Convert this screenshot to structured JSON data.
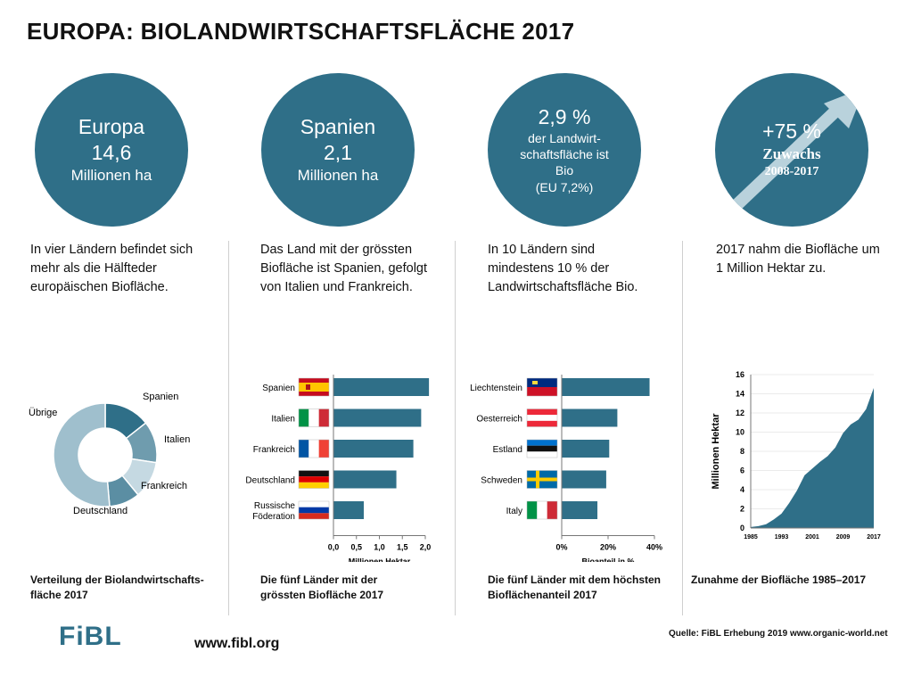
{
  "title": "EUROPA: BIOLANDWIRTSCHAFTSFLÄCHE 2017",
  "accent_color": "#2f6f88",
  "circles": [
    {
      "line1": "Europa",
      "line2": "14,6",
      "line3": "Millionen ha"
    },
    {
      "line1": "Spanien",
      "line2": "2,1",
      "line3": "Millionen ha"
    },
    {
      "line1": "2,9 %",
      "line2": "der Landwirt-",
      "line3": "schaftsfläche ist",
      "line4": "Bio",
      "line5": "(EU 7,2%)"
    },
    {
      "line1": "+75 %",
      "line2": "Zuwachs",
      "line3": "2008-2017"
    }
  ],
  "descriptions": [
    "In vier Ländern befindet sich mehr als die Hälfteder europäischen Biofläche.",
    "Das Land mit der grössten Biofläche ist Spanien, gefolgt von Italien und Frankreich.",
    "In 10 Ländern sind mindestens 10 % der Landwirtschaftsfläche Bio.",
    "2017 nahm die Biofläche um 1 Million Hektar zu."
  ],
  "captions": [
    {
      "line1": "Verteilung der Biolandwirtschafts-",
      "line2": "fläche 2017"
    },
    {
      "line1": "Die fünf Länder mit der",
      "line2": "grössten Biofläche 2017"
    },
    {
      "line1": "Die fünf Länder mit dem höchsten",
      "line2": "Bioflächenanteil 2017"
    },
    {
      "line1": "Zunahme der Biofläche 1985–2017",
      "line2": ""
    }
  ],
  "chart_data": [
    {
      "type": "pie",
      "style": "donut",
      "labels": [
        "Spanien",
        "Italien",
        "Frankreich",
        "Deutschland",
        "Übrige"
      ],
      "values": [
        2.1,
        1.9,
        1.7,
        1.4,
        7.5
      ],
      "colors": [
        "#2f6f88",
        "#6f9cae",
        "#c5d9e2",
        "#5b8ea3",
        "#9fbfcd"
      ]
    },
    {
      "type": "bar",
      "orientation": "horizontal",
      "categories": [
        "Spanien",
        "Italien",
        "Frankreich",
        "Deutschland",
        "Russische Föderation"
      ],
      "flags": [
        "spain-flag-icon",
        "italy-flag-icon",
        "france-flag-icon",
        "germany-flag-icon",
        "russia-flag-icon"
      ],
      "values": [
        2.08,
        1.91,
        1.74,
        1.37,
        0.66
      ],
      "xlabel": "Millionen Hektar",
      "ticks": [
        "0,0",
        "0,5",
        "1,0",
        "1,5",
        "2,0"
      ],
      "xlim": [
        0,
        2.0
      ],
      "color": "#2f6f88"
    },
    {
      "type": "bar",
      "orientation": "horizontal",
      "categories": [
        "Liechtenstein",
        "Oesterreich",
        "Estland",
        "Schweden",
        "Italy"
      ],
      "flags": [
        "liechtenstein-flag-icon",
        "austria-flag-icon",
        "estonia-flag-icon",
        "sweden-flag-icon",
        "italy-flag-icon"
      ],
      "values": [
        37.9,
        24.0,
        20.5,
        19.2,
        15.4
      ],
      "xlabel": "Bioanteil in %",
      "ticks": [
        "0%",
        "20%",
        "40%"
      ],
      "xlim": [
        0,
        40
      ],
      "color": "#2f6f88"
    },
    {
      "type": "area",
      "x": [
        1985,
        1987,
        1989,
        1991,
        1993,
        1995,
        1997,
        1999,
        2001,
        2003,
        2005,
        2007,
        2009,
        2011,
        2013,
        2015,
        2017
      ],
      "y": [
        0.1,
        0.2,
        0.4,
        0.9,
        1.5,
        2.6,
        3.9,
        5.5,
        6.2,
        6.9,
        7.5,
        8.4,
        9.9,
        10.8,
        11.3,
        12.4,
        14.6
      ],
      "ylabel": "Millionen Hektar",
      "xticks": [
        "1985",
        "1993",
        "2001",
        "2009",
        "2017"
      ],
      "yticks": [
        "0",
        "2",
        "4",
        "6",
        "8",
        "10",
        "12",
        "14",
        "16"
      ],
      "ylim": [
        0,
        16
      ],
      "xlim": [
        1985,
        2017
      ],
      "color": "#2f6f88"
    }
  ],
  "footer": {
    "logo": "FiBL",
    "website": "www.fibl.org",
    "source": "Quelle: FiBL Erhebung 2019 www.organic-world.net"
  }
}
